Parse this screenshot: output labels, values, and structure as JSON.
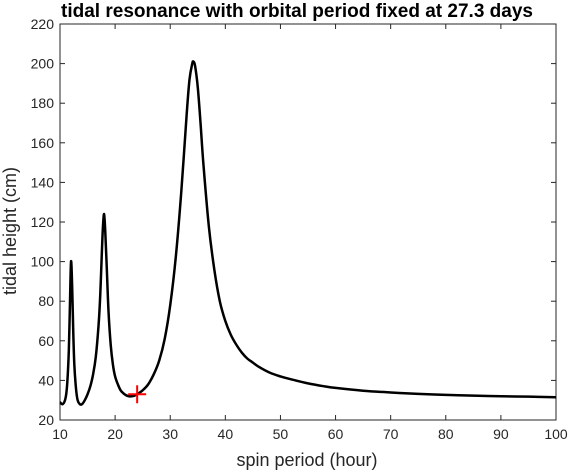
{
  "chart_data": {
    "type": "line",
    "title": "tidal resonance with orbital period fixed at 27.3 days",
    "xlabel": "spin period (hour)",
    "ylabel": "tidal height (cm)",
    "xlim": [
      10,
      100
    ],
    "ylim": [
      20,
      220
    ],
    "xticks": [
      10,
      20,
      30,
      40,
      50,
      60,
      70,
      80,
      90,
      100
    ],
    "yticks": [
      20,
      40,
      60,
      80,
      100,
      120,
      140,
      160,
      180,
      200,
      220
    ],
    "grid": false,
    "line_color": "#000000",
    "marker_color": "#ff0000",
    "series": [
      {
        "x": [
          10,
          10.5,
          11,
          11.3,
          11.6,
          11.8,
          12.0,
          12.2,
          12.4,
          12.6,
          12.9,
          13.2,
          13.6,
          14,
          14.5,
          15,
          15.5,
          16,
          16.5,
          17,
          17.3,
          17.6,
          17.8,
          18.0,
          18.2,
          18.5,
          18.8,
          19.2,
          19.6,
          20,
          20.5,
          21,
          21.5,
          22,
          22.5,
          23,
          23.5,
          24,
          25,
          26,
          27,
          28,
          29,
          30,
          31,
          32,
          33,
          33.5,
          34,
          34.2,
          34.5,
          35,
          35.5,
          36,
          37,
          38,
          39,
          40,
          41,
          42,
          43,
          44,
          45,
          46,
          48,
          50,
          52,
          55,
          58,
          60,
          65,
          70,
          75,
          80,
          85,
          90,
          95,
          100
        ],
        "y": [
          29,
          28,
          31,
          38,
          55,
          78,
          100,
          88,
          65,
          48,
          36,
          30,
          28,
          28,
          30,
          33,
          37,
          43,
          52,
          68,
          83,
          105,
          118,
          124,
          116,
          96,
          75,
          58,
          48,
          42,
          38,
          35,
          33.5,
          32.5,
          32,
          32,
          32.3,
          33,
          35,
          38,
          43,
          50,
          61,
          78,
          102,
          135,
          175,
          192,
          200,
          201,
          199,
          188,
          170,
          150,
          118,
          96,
          80,
          70,
          63,
          58,
          54,
          51,
          49,
          47,
          44,
          42,
          40.5,
          38.5,
          37,
          36.2,
          34.8,
          33.9,
          33.2,
          32.7,
          32.3,
          32,
          31.8,
          31.5
        ]
      }
    ],
    "marker": {
      "x": 24,
      "y": 33,
      "symbol": "+"
    }
  }
}
